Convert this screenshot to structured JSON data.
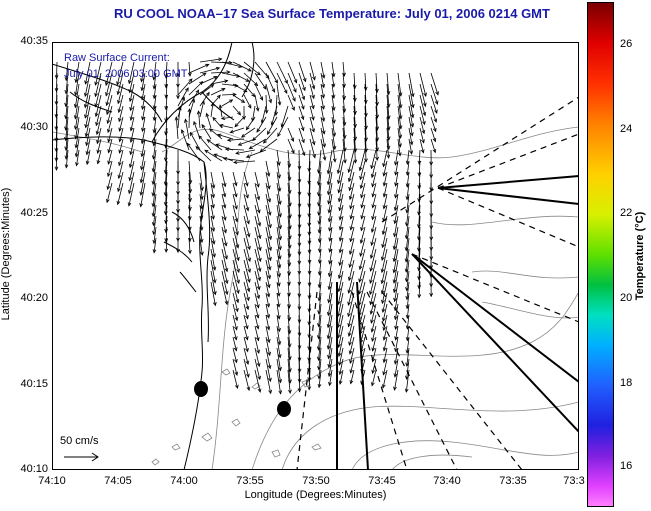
{
  "title": "RU COOL  NOAA–17  Sea Surface Temperature:  July 01, 2006 0214 GMT",
  "overlay": {
    "line1": "Raw Surface Current:",
    "line2": "July 01, 2006 03:00 GMT"
  },
  "axes": {
    "xlabel": "Longitude (Degrees:Minutes)",
    "ylabel": "Latitude (Degrees:Minutes)",
    "xticks": [
      "74:10",
      "74:05",
      "74:00",
      "73:55",
      "73:50",
      "73:45",
      "73:40",
      "73:35",
      "73:3"
    ],
    "yticks": [
      "40:35",
      "40:30",
      "40:25",
      "40:20",
      "40:15",
      "40:10"
    ]
  },
  "scale": {
    "label": "50 cm/s"
  },
  "colorbar": {
    "label": "Temperature (°C)",
    "ticks": [
      "26",
      "24",
      "22",
      "20",
      "18",
      "16"
    ]
  },
  "colors": {
    "title": "#1a1aa8",
    "vectors": "#000000",
    "coast": "#000000",
    "bathymetry": "#777777"
  }
}
